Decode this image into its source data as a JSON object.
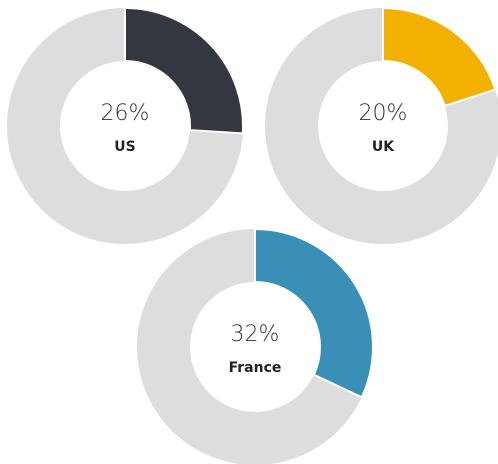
{
  "chart_data": [
    {
      "type": "donut",
      "title": "US",
      "values": [
        26
      ],
      "value_labels": [
        "26%"
      ],
      "color": "#333740",
      "track_color": "#dddddd"
    },
    {
      "type": "donut",
      "title": "UK",
      "values": [
        20
      ],
      "value_labels": [
        "20%"
      ],
      "color": "#f3b000",
      "track_color": "#dddddd"
    },
    {
      "type": "donut",
      "title": "France",
      "values": [
        32
      ],
      "value_labels": [
        "32%"
      ],
      "color": "#3a8fb7",
      "track_color": "#dddddd"
    }
  ]
}
